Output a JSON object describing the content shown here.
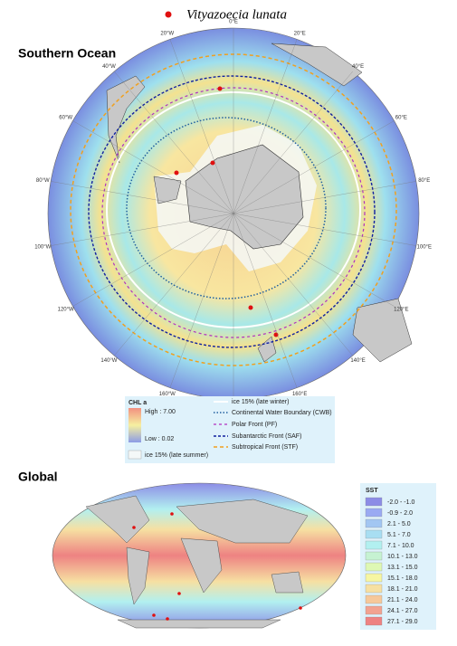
{
  "species_legend": "Vityazoecia lunata",
  "southern_ocean": {
    "title": "Southern Ocean",
    "longitudes": [
      "0°E",
      "20°E",
      "40°E",
      "60°E",
      "80°E",
      "100°E",
      "120°E",
      "140°E",
      "160°E",
      "180°",
      "160°W",
      "140°W",
      "120°W",
      "100°W",
      "80°W",
      "60°W",
      "40°W",
      "20°W"
    ],
    "legend": {
      "chl_title": "CHL a",
      "chl_high": "High : 7.00",
      "chl_low": "Low : 0.02",
      "ice_summer": "ice 15% (late summer)",
      "ice_winter": "ice 15% (late winter)",
      "cwb": "Continental Water Boundary (CWB)",
      "pf": "Polar Front (PF)",
      "saf": "Subantarctic Front (SAF)",
      "stf": "Subtropical Front (STF)"
    }
  },
  "global": {
    "title": "Global",
    "sst_title": "SST",
    "sst_classes": [
      {
        "label": "-2.0 - -1.0",
        "color": "#8c8ce6"
      },
      {
        "label": "-0.9 - 2.0",
        "color": "#9aaaf2"
      },
      {
        "label": "2.1 - 5.0",
        "color": "#a2c6f2"
      },
      {
        "label": "5.1 - 7.0",
        "color": "#a8def2"
      },
      {
        "label": "7.1 - 10.0",
        "color": "#b2f0f0"
      },
      {
        "label": "10.1 - 13.0",
        "color": "#c6f2d2"
      },
      {
        "label": "13.1 - 15.0",
        "color": "#def8b4"
      },
      {
        "label": "15.1 - 18.0",
        "color": "#f6f6a2"
      },
      {
        "label": "18.1 - 21.0",
        "color": "#f6e0a2"
      },
      {
        "label": "21.1 - 24.0",
        "color": "#f6c89a"
      },
      {
        "label": "24.1 - 27.0",
        "color": "#f2a290"
      },
      {
        "label": "27.1 - 29.0",
        "color": "#ee8282"
      }
    ]
  }
}
